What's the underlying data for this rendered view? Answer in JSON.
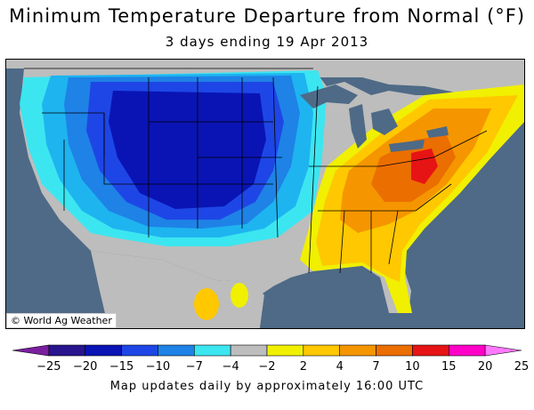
{
  "title": "Minimum Temperature Departure from Normal (°F)",
  "subtitle": "3 days ending 19 Apr 2013",
  "credit": "© World Ag Weather",
  "footer": "Map updates daily by approximately 16:00 UTC",
  "colors": {
    "ocean": "#4e6a86",
    "land_neutral": "#bdbdbd",
    "deep_blue": "#0a14b4",
    "blue": "#1e46e6",
    "mid_blue": "#1e82e6",
    "light_blue": "#1eb4f0",
    "cyan": "#3ce6f0",
    "yellow": "#f0f000",
    "gold": "#ffc800",
    "orange": "#f59600",
    "dark_orange": "#eb6e00",
    "red": "#e61414",
    "magenta": "#ff00c8",
    "great_lakes": "#4e6a86"
  },
  "legend": {
    "ticks": [
      "−25",
      "−20",
      "−15",
      "−10",
      "−7",
      "−4",
      "−2",
      "2",
      "4",
      "7",
      "10",
      "15",
      "20",
      "25"
    ],
    "bins": [
      {
        "color": "#7a1fa0"
      },
      {
        "color": "#28148c"
      },
      {
        "color": "#0a14b4"
      },
      {
        "color": "#1e46e6"
      },
      {
        "color": "#1e82e6"
      },
      {
        "color": "#3ce6f0"
      },
      {
        "color": "#bdbdbd"
      },
      {
        "color": "#f0f000"
      },
      {
        "color": "#ffc800"
      },
      {
        "color": "#f59600"
      },
      {
        "color": "#eb6e00"
      },
      {
        "color": "#e61414"
      },
      {
        "color": "#ff00c8"
      },
      {
        "color": "#ff78ff"
      }
    ]
  }
}
